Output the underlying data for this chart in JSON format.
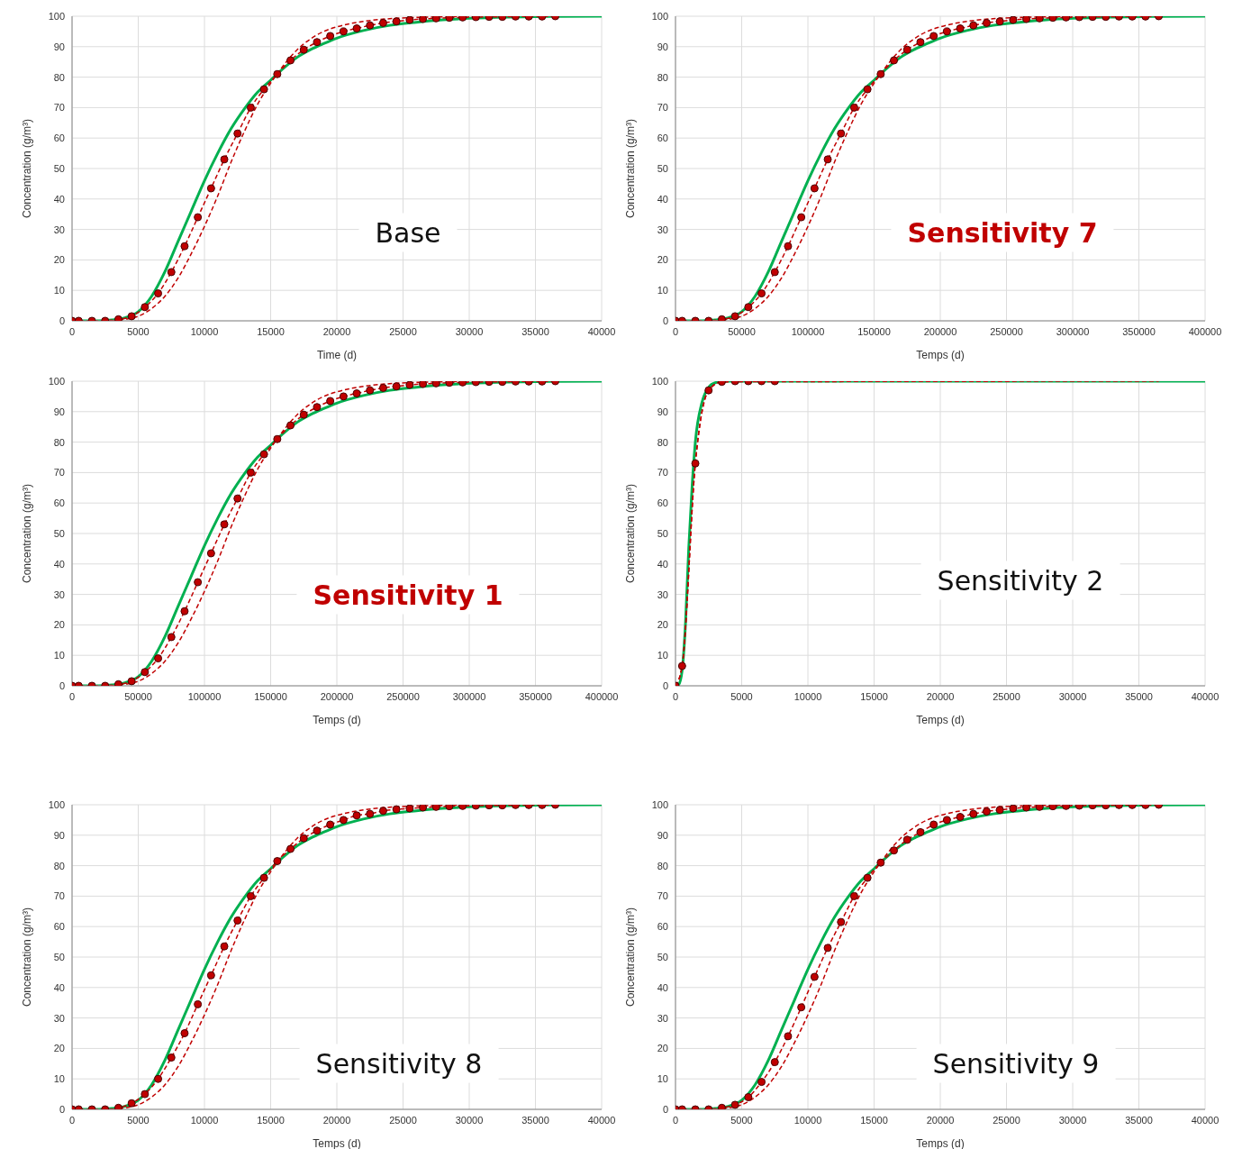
{
  "chart_data": [
    {
      "type": "line",
      "title": "Base",
      "xlabel": "Time (d)",
      "ylabel": "Concentration (g/m³)",
      "xlim": [
        0,
        40000
      ],
      "xticks": [
        0,
        5000,
        10000,
        15000,
        20000,
        25000,
        30000,
        35000,
        40000
      ],
      "ylim": [
        0,
        100
      ],
      "yticks": [
        0,
        10,
        20,
        30,
        40,
        50,
        60,
        70,
        80,
        90,
        100
      ],
      "grid": true,
      "series": [
        {
          "color": "#00b050",
          "line_style": "solid",
          "marker": "none",
          "x": [
            0,
            2000,
            3000,
            4000,
            5000,
            6000,
            7000,
            8000,
            9000,
            10000,
            11000,
            12000,
            13000,
            14000,
            15000,
            16000,
            17000,
            18000,
            19000,
            20000,
            22000,
            24000,
            26000,
            28000,
            30000,
            33000,
            36000,
            40000
          ],
          "values": [
            0,
            0,
            0.3,
            1,
            3,
            8,
            16,
            26,
            36,
            46,
            55,
            63,
            69.5,
            75,
            79,
            83,
            86.5,
            89,
            91,
            92.8,
            95.3,
            97,
            98,
            98.8,
            99.3,
            99.7,
            99.9,
            100
          ]
        },
        {
          "color": "#c00000",
          "line_style": "dashed",
          "marker": "circle",
          "x": [
            0,
            500,
            1500,
            2500,
            3500,
            4500,
            5500,
            6500,
            7500,
            8500,
            9500,
            10500,
            11500,
            12500,
            13500,
            14500,
            15500,
            16500,
            17500,
            18500,
            19500,
            20500,
            21500,
            22500,
            23500,
            24500,
            25500,
            26500,
            27500,
            28500,
            29500,
            30500,
            31500,
            32500,
            33500,
            34500,
            35500,
            36500
          ],
          "values": [
            0,
            0,
            0,
            0,
            0.5,
            1.5,
            4.5,
            9,
            16,
            24.5,
            34,
            43.5,
            53,
            61.5,
            70,
            76,
            81,
            85.5,
            89,
            91.5,
            93.5,
            95,
            96,
            97,
            97.8,
            98.3,
            98.8,
            99.1,
            99.3,
            99.5,
            99.6,
            99.7,
            99.8,
            99.8,
            99.9,
            99.9,
            99.9,
            100
          ]
        },
        {
          "color": "#c00000",
          "line_style": "dashed",
          "marker": "none",
          "x": [
            3000,
            4000,
            5000,
            6000,
            7000,
            8000,
            9000,
            10000,
            11000,
            12000,
            13000,
            14000,
            15000,
            16000,
            17000,
            18000,
            19000,
            20000,
            22000,
            24000,
            26000,
            28000,
            30000
          ],
          "values": [
            0,
            0.5,
            1.5,
            4,
            8,
            14,
            22,
            31,
            41,
            52,
            62,
            71,
            78,
            84,
            89,
            92.5,
            95,
            96.5,
            98.3,
            99.2,
            99.6,
            99.8,
            100
          ]
        }
      ]
    },
    {
      "type": "line",
      "title": "Sensitivity 7",
      "xlabel": "Temps (d)",
      "ylabel": "Concentration (g/m³)",
      "xlim": [
        0,
        400000
      ],
      "xticks": [
        0,
        50000,
        100000,
        150000,
        200000,
        250000,
        300000,
        350000,
        400000
      ],
      "ylim": [
        0,
        100
      ],
      "yticks": [
        0,
        10,
        20,
        30,
        40,
        50,
        60,
        70,
        80,
        90,
        100
      ],
      "grid": true,
      "series": [
        {
          "color": "#00b050",
          "line_style": "solid",
          "marker": "none",
          "x": [
            0,
            20000,
            30000,
            40000,
            50000,
            60000,
            70000,
            80000,
            90000,
            100000,
            110000,
            120000,
            130000,
            140000,
            150000,
            160000,
            170000,
            180000,
            190000,
            200000,
            220000,
            240000,
            260000,
            280000,
            300000,
            330000,
            360000,
            400000
          ],
          "values": [
            0,
            0,
            0.3,
            1,
            3,
            8,
            16,
            26,
            36,
            46,
            55,
            63,
            69.5,
            75,
            79,
            83,
            86.5,
            89,
            91,
            92.8,
            95.3,
            97,
            98,
            98.8,
            99.3,
            99.7,
            99.9,
            100
          ]
        },
        {
          "color": "#c00000",
          "line_style": "dashed",
          "marker": "circle",
          "x": [
            0,
            5000,
            15000,
            25000,
            35000,
            45000,
            55000,
            65000,
            75000,
            85000,
            95000,
            105000,
            115000,
            125000,
            135000,
            145000,
            155000,
            165000,
            175000,
            185000,
            195000,
            205000,
            215000,
            225000,
            235000,
            245000,
            255000,
            265000,
            275000,
            285000,
            295000,
            305000,
            315000,
            325000,
            335000,
            345000,
            355000,
            365000
          ],
          "values": [
            0,
            0,
            0,
            0,
            0.5,
            1.5,
            4.5,
            9,
            16,
            24.5,
            34,
            43.5,
            53,
            61.5,
            70,
            76,
            81,
            85.5,
            89,
            91.5,
            93.5,
            95,
            96,
            97,
            97.8,
            98.3,
            98.8,
            99.1,
            99.3,
            99.5,
            99.6,
            99.7,
            99.8,
            99.8,
            99.9,
            99.9,
            99.9,
            100
          ]
        },
        {
          "color": "#c00000",
          "line_style": "dashed",
          "marker": "none",
          "x": [
            30000,
            40000,
            50000,
            60000,
            70000,
            80000,
            90000,
            100000,
            110000,
            120000,
            130000,
            140000,
            150000,
            160000,
            170000,
            180000,
            190000,
            200000,
            220000,
            240000,
            260000,
            280000,
            300000
          ],
          "values": [
            0,
            0.5,
            1.5,
            4,
            8,
            14,
            22,
            31,
            41,
            52,
            62,
            71,
            78,
            84,
            89,
            92.5,
            95,
            96.5,
            98.3,
            99.2,
            99.6,
            99.8,
            100
          ]
        }
      ]
    },
    {
      "type": "line",
      "title": "Sensitivity 1",
      "xlabel": "Temps (d)",
      "ylabel": "Concentration (g/m³)",
      "xlim": [
        0,
        400000
      ],
      "xticks": [
        0,
        50000,
        100000,
        150000,
        200000,
        250000,
        300000,
        350000,
        400000
      ],
      "ylim": [
        0,
        100
      ],
      "yticks": [
        0,
        10,
        20,
        30,
        40,
        50,
        60,
        70,
        80,
        90,
        100
      ],
      "grid": true,
      "series": [
        {
          "color": "#00b050",
          "line_style": "solid",
          "marker": "none",
          "x": [
            0,
            20000,
            30000,
            40000,
            50000,
            60000,
            70000,
            80000,
            90000,
            100000,
            110000,
            120000,
            130000,
            140000,
            150000,
            160000,
            170000,
            180000,
            190000,
            200000,
            220000,
            240000,
            260000,
            280000,
            300000,
            330000,
            360000,
            400000
          ],
          "values": [
            0,
            0,
            0.3,
            1,
            3,
            8,
            16,
            26,
            36,
            46,
            55,
            63,
            69.5,
            75,
            79,
            83,
            86.5,
            89,
            91,
            92.8,
            95.3,
            97,
            98,
            98.8,
            99.3,
            99.7,
            99.9,
            100
          ]
        },
        {
          "color": "#c00000",
          "line_style": "dashed",
          "marker": "circle",
          "x": [
            0,
            5000,
            15000,
            25000,
            35000,
            45000,
            55000,
            65000,
            75000,
            85000,
            95000,
            105000,
            115000,
            125000,
            135000,
            145000,
            155000,
            165000,
            175000,
            185000,
            195000,
            205000,
            215000,
            225000,
            235000,
            245000,
            255000,
            265000,
            275000,
            285000,
            295000,
            305000,
            315000,
            325000,
            335000,
            345000,
            355000,
            365000
          ],
          "values": [
            0,
            0,
            0,
            0,
            0.5,
            1.5,
            4.5,
            9,
            16,
            24.5,
            34,
            43.5,
            53,
            61.5,
            70,
            76,
            81,
            85.5,
            89,
            91.5,
            93.5,
            95,
            96,
            97,
            97.8,
            98.3,
            98.8,
            99.1,
            99.3,
            99.5,
            99.6,
            99.7,
            99.8,
            99.8,
            99.9,
            99.9,
            99.9,
            100
          ]
        },
        {
          "color": "#c00000",
          "line_style": "dashed",
          "marker": "none",
          "x": [
            30000,
            40000,
            50000,
            60000,
            70000,
            80000,
            90000,
            100000,
            110000,
            120000,
            130000,
            140000,
            150000,
            160000,
            170000,
            180000,
            190000,
            200000,
            220000,
            240000,
            260000,
            280000,
            300000
          ],
          "values": [
            0,
            0.5,
            1.5,
            4,
            8,
            14,
            22,
            31,
            41,
            52,
            62,
            71,
            78,
            84,
            89,
            92.5,
            95,
            96.5,
            98.3,
            99.2,
            99.6,
            99.8,
            100
          ]
        }
      ]
    },
    {
      "type": "line",
      "title": "Sensitivity 2",
      "xlabel": "Temps (d)",
      "ylabel": "Concentration (g/m³)",
      "xlim": [
        0,
        40000
      ],
      "xticks": [
        0,
        5000,
        10000,
        15000,
        20000,
        25000,
        30000,
        35000,
        40000
      ],
      "ylim": [
        0,
        100
      ],
      "yticks": [
        0,
        10,
        20,
        30,
        40,
        50,
        60,
        70,
        80,
        90,
        100
      ],
      "grid": true,
      "series": [
        {
          "color": "#00b050",
          "line_style": "solid",
          "marker": "none",
          "x": [
            0,
            250,
            500,
            750,
            1000,
            1250,
            1500,
            2000,
            2500,
            3000,
            3500,
            4000,
            40000
          ],
          "values": [
            0,
            0.5,
            5,
            20,
            45,
            65,
            80,
            93,
            98,
            99.5,
            99.8,
            100,
            100
          ]
        },
        {
          "color": "#c00000",
          "line_style": "dashed",
          "marker": "circle",
          "x": [
            0,
            500,
            1500,
            2500,
            3500,
            4500,
            5500,
            6500,
            7500
          ],
          "values": [
            0,
            6.5,
            73,
            97,
            99.8,
            100,
            100,
            100,
            100
          ]
        },
        {
          "color": "#c00000",
          "line_style": "dashed",
          "marker": "none",
          "x": [
            0,
            500,
            1500,
            2500,
            3500,
            36500
          ],
          "values": [
            0,
            6.5,
            73,
            97,
            99.8,
            100
          ]
        }
      ]
    },
    {
      "type": "line",
      "title": "Sensitivity 8",
      "xlabel": "Temps (d)",
      "ylabel": "Concentration (g/m³)",
      "xlim": [
        0,
        40000
      ],
      "xticks": [
        0,
        5000,
        10000,
        15000,
        20000,
        25000,
        30000,
        35000,
        40000
      ],
      "ylim": [
        0,
        100
      ],
      "yticks": [
        0,
        10,
        20,
        30,
        40,
        50,
        60,
        70,
        80,
        90,
        100
      ],
      "grid": true,
      "series": [
        {
          "color": "#00b050",
          "line_style": "solid",
          "marker": "none",
          "x": [
            0,
            2000,
            3000,
            4000,
            5000,
            6000,
            7000,
            8000,
            9000,
            10000,
            11000,
            12000,
            13000,
            14000,
            15000,
            16000,
            17000,
            18000,
            19000,
            20000,
            22000,
            24000,
            26000,
            28000,
            30000,
            33000,
            36000,
            40000
          ],
          "values": [
            0,
            0,
            0.3,
            1,
            3,
            8,
            16,
            26,
            36,
            46,
            55,
            63,
            69.5,
            75,
            79,
            83,
            86.5,
            89,
            91,
            92.8,
            95.3,
            97,
            98,
            98.8,
            99.3,
            99.7,
            99.9,
            100
          ]
        },
        {
          "color": "#c00000",
          "line_style": "dashed",
          "marker": "circle",
          "x": [
            0,
            500,
            1500,
            2500,
            3500,
            4500,
            5500,
            6500,
            7500,
            8500,
            9500,
            10500,
            11500,
            12500,
            13500,
            14500,
            15500,
            16500,
            17500,
            18500,
            19500,
            20500,
            21500,
            22500,
            23500,
            24500,
            25500,
            26500,
            27500,
            28500,
            29500,
            30500,
            31500,
            32500,
            33500,
            34500,
            35500,
            36500
          ],
          "values": [
            0,
            0,
            0,
            0,
            0.5,
            2,
            5,
            10,
            17,
            25,
            34.5,
            44,
            53.5,
            62,
            70,
            76,
            81.5,
            85.5,
            89,
            91.5,
            93.5,
            95,
            96.5,
            97,
            98,
            98.5,
            98.8,
            99.1,
            99.3,
            99.5,
            99.6,
            99.7,
            99.8,
            99.8,
            99.9,
            99.9,
            99.9,
            100
          ]
        },
        {
          "color": "#c00000",
          "line_style": "dashed",
          "marker": "none",
          "x": [
            3000,
            4000,
            5000,
            6000,
            7000,
            8000,
            9000,
            10000,
            11000,
            12000,
            13000,
            14000,
            15000,
            16000,
            17000,
            18000,
            19000,
            20000,
            22000,
            24000,
            26000,
            28000,
            30000
          ],
          "values": [
            0,
            0.5,
            1.5,
            4,
            8,
            14,
            22,
            31,
            41,
            52,
            62,
            71,
            78,
            84,
            89,
            92.5,
            95,
            96.5,
            98.3,
            99.2,
            99.6,
            99.8,
            100
          ]
        }
      ]
    },
    {
      "type": "line",
      "title": "Sensitivity 9",
      "xlabel": "Temps (d)",
      "ylabel": "Concentration (g/m³)",
      "xlim": [
        0,
        40000
      ],
      "xticks": [
        0,
        5000,
        10000,
        15000,
        20000,
        25000,
        30000,
        35000,
        40000
      ],
      "ylim": [
        0,
        100
      ],
      "yticks": [
        0,
        10,
        20,
        30,
        40,
        50,
        60,
        70,
        80,
        90,
        100
      ],
      "grid": true,
      "series": [
        {
          "color": "#00b050",
          "line_style": "solid",
          "marker": "none",
          "x": [
            0,
            2000,
            3000,
            4000,
            5000,
            6000,
            7000,
            8000,
            9000,
            10000,
            11000,
            12000,
            13000,
            14000,
            15000,
            16000,
            17000,
            18000,
            19000,
            20000,
            22000,
            24000,
            26000,
            28000,
            30000,
            33000,
            36000,
            40000
          ],
          "values": [
            0,
            0,
            0.3,
            1,
            3,
            8,
            16,
            26,
            36,
            46,
            55,
            63,
            69.5,
            75,
            79,
            83,
            86.5,
            89,
            91,
            92.8,
            95.3,
            97,
            98,
            98.8,
            99.3,
            99.7,
            99.9,
            100
          ]
        },
        {
          "color": "#c00000",
          "line_style": "dashed",
          "marker": "circle",
          "x": [
            0,
            500,
            1500,
            2500,
            3500,
            4500,
            5500,
            6500,
            7500,
            8500,
            9500,
            10500,
            11500,
            12500,
            13500,
            14500,
            15500,
            16500,
            17500,
            18500,
            19500,
            20500,
            21500,
            22500,
            23500,
            24500,
            25500,
            26500,
            27500,
            28500,
            29500,
            30500,
            31500,
            32500,
            33500,
            34500,
            35500,
            36500
          ],
          "values": [
            0,
            0,
            0,
            0,
            0.5,
            1.5,
            4,
            9,
            15.5,
            24,
            33.5,
            43.5,
            53,
            61.5,
            70,
            76,
            81,
            85,
            88.5,
            91,
            93.5,
            95,
            96,
            97,
            97.8,
            98.3,
            98.8,
            99.1,
            99.3,
            99.5,
            99.6,
            99.7,
            99.8,
            99.8,
            99.9,
            99.9,
            99.9,
            100
          ]
        },
        {
          "color": "#c00000",
          "line_style": "dashed",
          "marker": "none",
          "x": [
            3000,
            4000,
            5000,
            6000,
            7000,
            8000,
            9000,
            10000,
            11000,
            12000,
            13000,
            14000,
            15000,
            16000,
            17000,
            18000,
            19000,
            20000,
            22000,
            24000,
            26000,
            28000,
            30000
          ],
          "values": [
            0,
            0.5,
            1.5,
            4,
            8,
            14,
            22,
            31,
            41,
            52,
            62,
            71,
            78,
            84,
            89,
            92.5,
            95,
            96.5,
            98.3,
            99.2,
            99.6,
            99.8,
            100
          ]
        }
      ]
    }
  ]
}
